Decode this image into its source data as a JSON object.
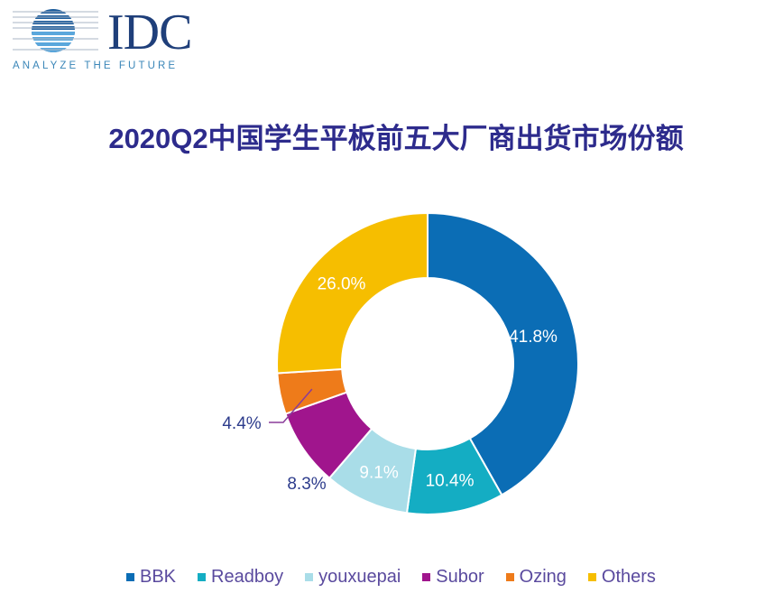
{
  "logo": {
    "name": "IDC",
    "tagline": "ANALYZE THE FUTURE"
  },
  "chart_data": {
    "type": "pie",
    "donut": true,
    "title": "2020Q2中国学生平板前五大厂商出货市场份额",
    "categories": [
      "BBK",
      "Readboy",
      "youxuepai",
      "Subor",
      "Ozing",
      "Others"
    ],
    "values": [
      41.8,
      10.4,
      9.1,
      8.3,
      4.4,
      26.0
    ],
    "labels": [
      "41.8%",
      "10.4%",
      "9.1%",
      "8.3%",
      "4.4%",
      "26.0%"
    ],
    "colors": [
      "#0b6db5",
      "#14adc3",
      "#a9dde8",
      "#a0158d",
      "#ee7b1a",
      "#f6be00"
    ],
    "legend_position": "bottom"
  }
}
